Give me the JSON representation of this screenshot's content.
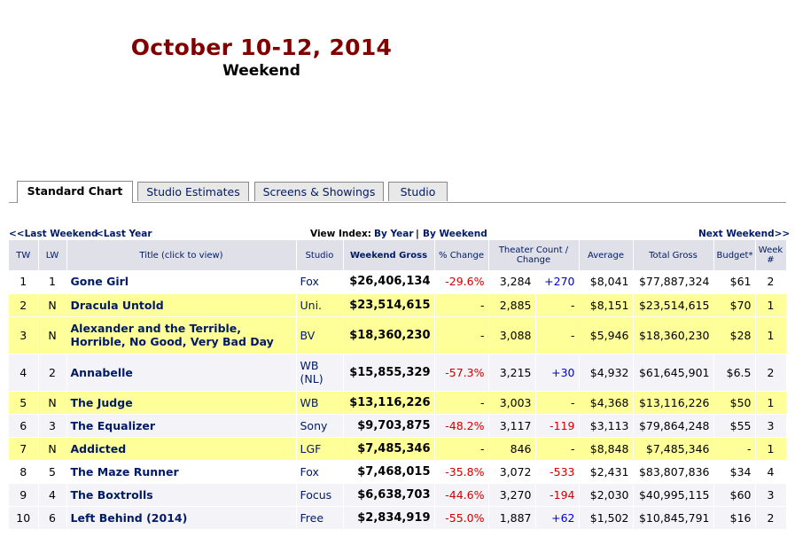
{
  "header": {
    "title": "October 10-12, 2014",
    "subtitle": "Weekend"
  },
  "tabs": [
    "Standard Chart",
    "Studio Estimates",
    "Screens & Showings",
    "Studio"
  ],
  "nav": {
    "last_weekend": "<<Last Weekend",
    "last_year": "<Last Year",
    "view_index": "View Index:",
    "by_year": "By Year",
    "sep": "|",
    "by_weekend": "By Weekend",
    "next_weekend": "Next Weekend>>"
  },
  "columns": [
    "TW",
    "LW",
    "Title (click to view)",
    "Studio",
    "Weekend Gross",
    "% Change",
    "Theater Count / Change",
    "Average",
    "Total Gross",
    "Budget*",
    "Week #"
  ],
  "rows": [
    {
      "tw": "1",
      "lw": "1",
      "title": "Gone Girl",
      "studio": "Fox",
      "gross": "$26,406,134",
      "pct": "-29.6%",
      "theaters": "3,284",
      "tchange": "+270",
      "avg": "$8,041",
      "total": "$77,887,324",
      "budget": "$61",
      "week": "2"
    },
    {
      "tw": "2",
      "lw": "N",
      "title": "Dracula Untold",
      "studio": "Uni.",
      "gross": "$23,514,615",
      "pct": "-",
      "theaters": "2,885",
      "tchange": "-",
      "avg": "$8,151",
      "total": "$23,514,615",
      "budget": "$70",
      "week": "1"
    },
    {
      "tw": "3",
      "lw": "N",
      "title": "Alexander and the Terrible, Horrible, No Good, Very Bad Day",
      "studio": "BV",
      "gross": "$18,360,230",
      "pct": "-",
      "theaters": "3,088",
      "tchange": "-",
      "avg": "$5,946",
      "total": "$18,360,230",
      "budget": "$28",
      "week": "1"
    },
    {
      "tw": "4",
      "lw": "2",
      "title": "Annabelle",
      "studio": "WB (NL)",
      "gross": "$15,855,329",
      "pct": "-57.3%",
      "theaters": "3,215",
      "tchange": "+30",
      "avg": "$4,932",
      "total": "$61,645,901",
      "budget": "$6.5",
      "week": "2"
    },
    {
      "tw": "5",
      "lw": "N",
      "title": "The Judge",
      "studio": "WB",
      "gross": "$13,116,226",
      "pct": "-",
      "theaters": "3,003",
      "tchange": "-",
      "avg": "$4,368",
      "total": "$13,116,226",
      "budget": "$50",
      "week": "1"
    },
    {
      "tw": "6",
      "lw": "3",
      "title": "The Equalizer",
      "studio": "Sony",
      "gross": "$9,703,875",
      "pct": "-48.2%",
      "theaters": "3,117",
      "tchange": "-119",
      "avg": "$3,113",
      "total": "$79,864,248",
      "budget": "$55",
      "week": "3"
    },
    {
      "tw": "7",
      "lw": "N",
      "title": "Addicted",
      "studio": "LGF",
      "gross": "$7,485,346",
      "pct": "-",
      "theaters": "846",
      "tchange": "-",
      "avg": "$8,848",
      "total": "$7,485,346",
      "budget": "-",
      "week": "1"
    },
    {
      "tw": "8",
      "lw": "5",
      "title": "The Maze Runner",
      "studio": "Fox",
      "gross": "$7,468,015",
      "pct": "-35.8%",
      "theaters": "3,072",
      "tchange": "-533",
      "avg": "$2,431",
      "total": "$83,807,836",
      "budget": "$34",
      "week": "4"
    },
    {
      "tw": "9",
      "lw": "4",
      "title": "The Boxtrolls",
      "studio": "Focus",
      "gross": "$6,638,703",
      "pct": "-44.6%",
      "theaters": "3,270",
      "tchange": "-194",
      "avg": "$2,030",
      "total": "$40,995,115",
      "budget": "$60",
      "week": "3"
    },
    {
      "tw": "10",
      "lw": "6",
      "title": "Left Behind (2014)",
      "studio": "Free",
      "gross": "$2,834,919",
      "pct": "-55.0%",
      "theaters": "1,887",
      "tchange": "+62",
      "avg": "$1,502",
      "total": "$10,845,791",
      "budget": "$16",
      "week": "2"
    }
  ],
  "colors": {
    "title": "#800000",
    "link": "#001a66",
    "highlight": "#ffff99",
    "negative": "#cc0000",
    "positive": "#0000cc"
  }
}
